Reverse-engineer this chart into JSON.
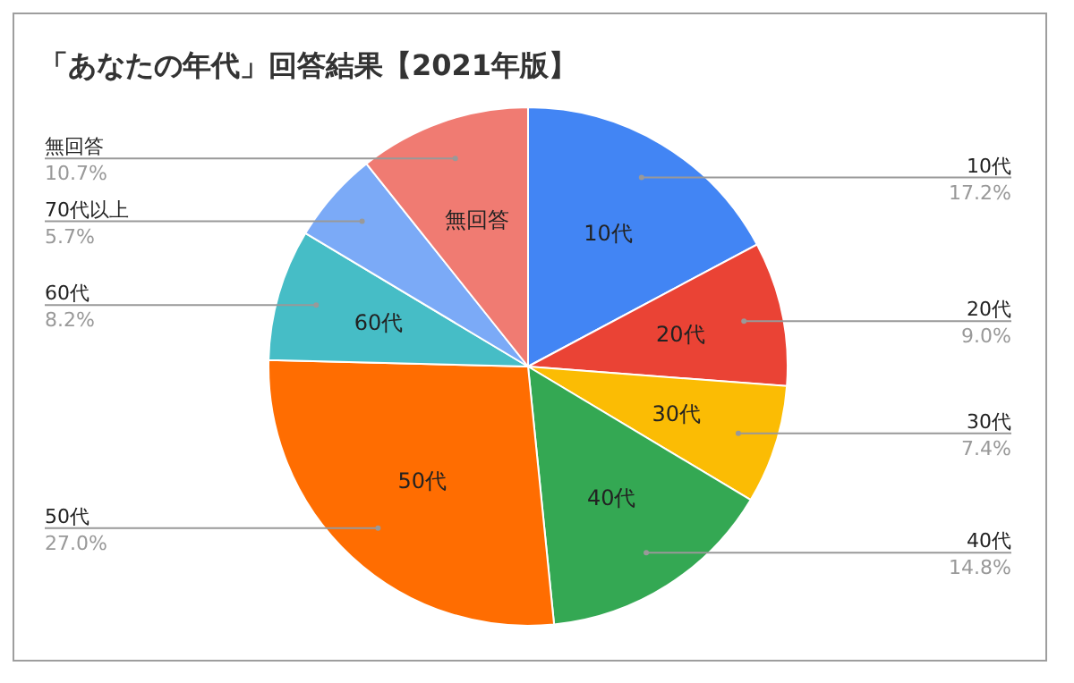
{
  "chart_data": {
    "type": "pie",
    "title": "「あなたの年代」回答結果【2021年版】",
    "categories": [
      "10代",
      "20代",
      "30代",
      "40代",
      "50代",
      "60代",
      "70代以上",
      "無回答"
    ],
    "values": [
      17.2,
      9.0,
      7.4,
      14.8,
      27.0,
      8.2,
      5.7,
      10.7
    ],
    "colors": [
      "#4285f4",
      "#ea4335",
      "#fbbc04",
      "#34a853",
      "#ff6d01",
      "#46bdc6",
      "#7baaf7",
      "#f07b72"
    ],
    "value_labels": [
      "17.2%",
      "9.0%",
      "7.4%",
      "14.8%",
      "27.0%",
      "8.2%",
      "5.7%",
      "10.7%"
    ]
  }
}
